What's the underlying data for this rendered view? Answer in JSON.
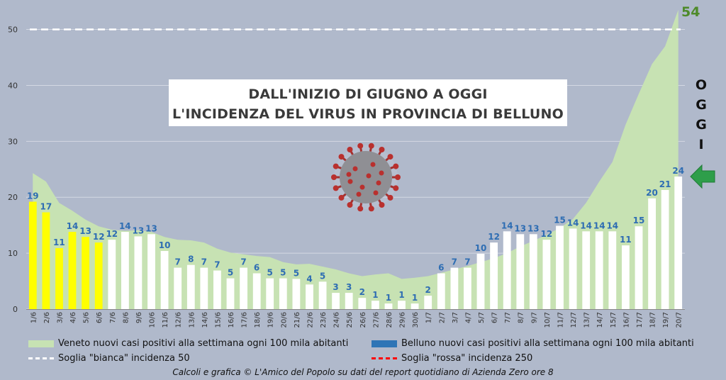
{
  "chart_data": {
    "type": "bar",
    "title_lines": [
      "DALL'INIZIO DI GIUGNO A OGGI",
      "L'INCIDENZA DEL VIRUS IN PROVINCIA DI BELLUNO"
    ],
    "categories": [
      "1/6",
      "2/6",
      "3/6",
      "4/6",
      "5/6",
      "6/6",
      "7/6",
      "8/6",
      "9/6",
      "10/6",
      "11/6",
      "12/6",
      "13/6",
      "14/6",
      "15/6",
      "16/6",
      "17/6",
      "18/6",
      "19/6",
      "20/6",
      "21/6",
      "22/6",
      "23/6",
      "24/6",
      "25/6",
      "26/6",
      "27/6",
      "28/6",
      "29/6",
      "30/6",
      "1/7",
      "2/7",
      "3/7",
      "4/7",
      "5/7",
      "6/7",
      "7/7",
      "8/7",
      "9/7",
      "10/7",
      "11/7",
      "12/7",
      "13/7",
      "14/7",
      "15/7",
      "16/7",
      "17/7",
      "18/7",
      "19/7",
      "20/7"
    ],
    "series": [
      {
        "name": "Veneto nuovi casi positivi alla settimana ogni 100 mila abitanti",
        "type": "area",
        "color": "#c7e2b3",
        "values": [
          24.3,
          22.8,
          19.0,
          17.6,
          16.0,
          14.8,
          14.2,
          14.0,
          14.1,
          13.8,
          12.9,
          12.4,
          12.3,
          11.9,
          10.8,
          10.1,
          9.8,
          9.5,
          9.3,
          8.4,
          8.0,
          8.1,
          7.6,
          7.1,
          6.4,
          5.9,
          6.2,
          6.4,
          5.4,
          5.6,
          5.9,
          6.5,
          7.1,
          7.7,
          8.4,
          9.1,
          10.0,
          11.2,
          12.2,
          13.3,
          14.5,
          16.1,
          19.0,
          22.8,
          26.3,
          33.0,
          38.5,
          43.8,
          47.0,
          53.5
        ]
      },
      {
        "name": "Belluno nuovi casi positivi alla settimana ogni 100 mila abitanti",
        "type": "bar",
        "legend_color": "#2e75b6",
        "highlight_color": "#ffff00",
        "bar_color": "#ffffff",
        "highlight_count": 6,
        "values": [
          19.2,
          17.3,
          10.9,
          13.8,
          12.9,
          11.9,
          12.4,
          13.8,
          13.0,
          13.4,
          10.4,
          7.4,
          7.9,
          7.4,
          6.9,
          5.5,
          7.4,
          6.4,
          5.5,
          5.5,
          5.4,
          4.4,
          4.9,
          2.9,
          2.9,
          2.0,
          1.5,
          1.0,
          1.5,
          1.0,
          2.4,
          6.4,
          7.4,
          7.4,
          9.9,
          11.9,
          13.9,
          13.4,
          13.4,
          12.4,
          14.9,
          14.4,
          13.9,
          13.9,
          13.9,
          11.4,
          14.8,
          19.8,
          21.3,
          23.7
        ],
        "labels": [
          "19",
          "17",
          "11",
          "14",
          "13",
          "12",
          "12",
          "14",
          "13",
          "13",
          "10",
          "7",
          "8",
          "7",
          "7",
          "5",
          "7",
          "6",
          "5",
          "5",
          "5",
          "4",
          "5",
          "3",
          "3",
          "2",
          "1",
          "1",
          "1",
          "1",
          "2",
          "6",
          "7",
          "7",
          "10",
          "12",
          "14",
          "13",
          "13",
          "12",
          "15",
          "14",
          "14",
          "14",
          "14",
          "11",
          "15",
          "20",
          "21",
          "24"
        ]
      }
    ],
    "thresholds": [
      {
        "label": "Soglia \"bianca\" incidenza 50",
        "value": 50,
        "color": "#ffffff"
      },
      {
        "label": "Soglia \"rossa\" incidenza 250",
        "value": 250,
        "color": "#ff0000"
      }
    ],
    "ylim": [
      0,
      54
    ],
    "yticks": [
      0,
      10,
      20,
      30,
      40,
      50
    ],
    "grid": true,
    "legend_position": "bottom",
    "current_value_label": "54",
    "today_label": [
      "O",
      "G",
      "G",
      "I"
    ],
    "arrow_color": "#2e9e4a",
    "credit": "Calcoli e grafica © L'Amico del Popolo su dati del report quotidiano di Azienda Zero ore 8"
  }
}
